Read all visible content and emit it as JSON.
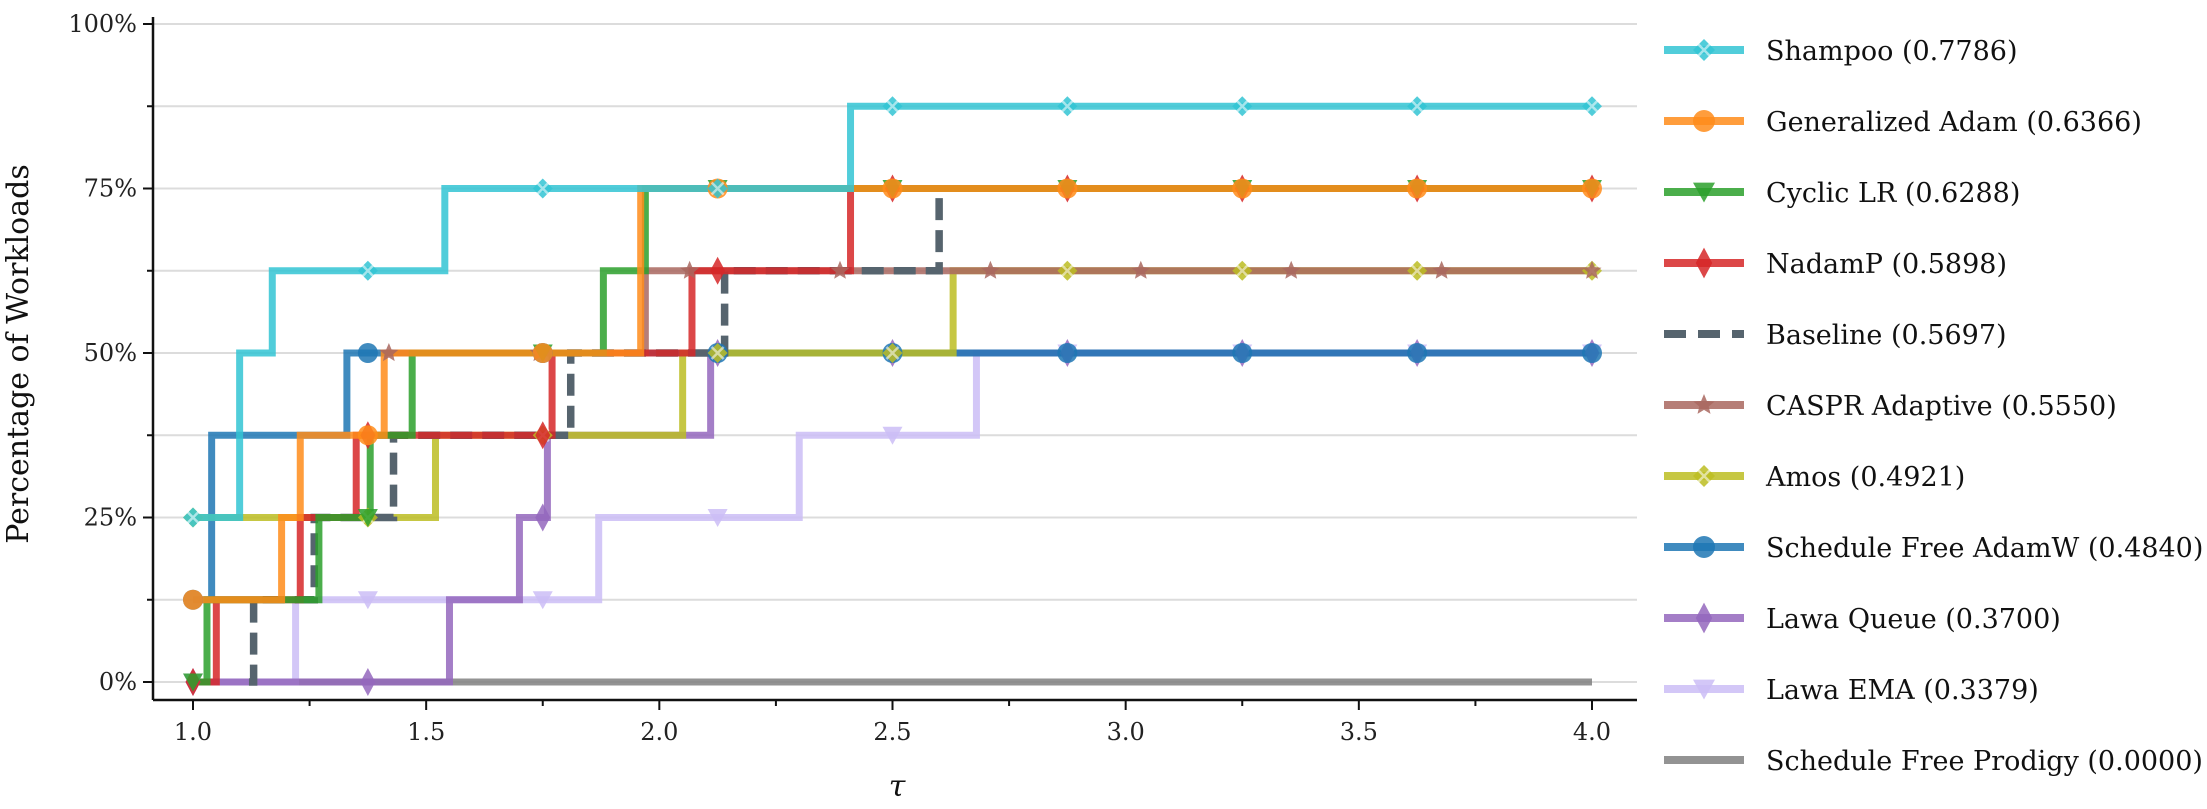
{
  "chart_data": {
    "type": "line",
    "subtype": "step",
    "xlabel": "τ",
    "ylabel": "Percentage of Workloads",
    "xlim": [
      0.9,
      4.08
    ],
    "ylim": [
      -3,
      100
    ],
    "xticks": [
      "1.0",
      "1.5",
      "2.0",
      "2.5",
      "3.0",
      "3.5",
      "4.0"
    ],
    "yticks": [
      "0%",
      "25%",
      "50%",
      "75%",
      "100%"
    ],
    "grid": "horizontal",
    "legend_position": "right",
    "series": [
      {
        "name": "Shampoo (0.7786)",
        "color": "#33c4d4",
        "marker": "x-diamond",
        "dash": "solid",
        "x": [
          1.0,
          1.1,
          1.17,
          1.54,
          2.41,
          4.0
        ],
        "y": [
          25,
          50,
          62.5,
          75,
          87.5,
          87.5
        ]
      },
      {
        "name": "Generalized Adam (0.6366)",
        "color": "#ff8c1a",
        "marker": "circle",
        "dash": "solid",
        "x": [
          1.0,
          1.19,
          1.23,
          1.41,
          1.96,
          4.0
        ],
        "y": [
          12.5,
          25,
          37.5,
          50,
          75,
          75
        ]
      },
      {
        "name": "Cyclic LR (0.6288)",
        "color": "#2ca02c",
        "marker": "triangle-down",
        "dash": "solid",
        "x": [
          1.0,
          1.03,
          1.27,
          1.38,
          1.47,
          1.88,
          1.97,
          4.0
        ],
        "y": [
          0,
          12.5,
          25,
          37.5,
          50,
          62.5,
          75,
          75
        ]
      },
      {
        "name": "NadamP (0.5898)",
        "color": "#d62728",
        "marker": "diamond",
        "dash": "solid",
        "x": [
          1.0,
          1.05,
          1.23,
          1.35,
          1.77,
          2.07,
          2.41,
          4.0
        ],
        "y": [
          0,
          12.5,
          25,
          37.5,
          50,
          62.5,
          75,
          75
        ]
      },
      {
        "name": "Baseline (0.5697)",
        "color": "#56646e",
        "marker": "none",
        "dash": "dashed",
        "x": [
          1.12,
          1.13,
          1.26,
          1.43,
          1.81,
          2.14,
          2.57,
          2.6
        ],
        "y": [
          0,
          12.5,
          25,
          37.5,
          50,
          62.5,
          62.5,
          75
        ]
      },
      {
        "name": "CASPR Adaptive (0.5550)",
        "color": "#a9675f",
        "marker": "star",
        "dash": "solid",
        "x": [
          1.42,
          1.97,
          4.0
        ],
        "y": [
          50,
          62.5,
          62.5
        ]
      },
      {
        "name": "Amos (0.4921)",
        "color": "#bcbd22",
        "marker": "x-diamond",
        "dash": "solid",
        "x": [
          1.0,
          1.52,
          2.05,
          2.63,
          4.0
        ],
        "y": [
          25,
          37.5,
          50,
          62.5,
          62.5
        ]
      },
      {
        "name": "Schedule Free AdamW (0.4840)",
        "color": "#1f77b4",
        "marker": "circle",
        "dash": "solid",
        "x": [
          1.0,
          1.04,
          1.33,
          4.0
        ],
        "y": [
          12.5,
          37.5,
          50,
          50
        ]
      },
      {
        "name": "Lawa Queue (0.3700)",
        "color": "#9467bd",
        "marker": "diamond",
        "dash": "solid",
        "x": [
          1.0,
          1.55,
          1.7,
          1.76,
          2.11,
          4.0
        ],
        "y": [
          0,
          12.5,
          25,
          37.5,
          50,
          50
        ]
      },
      {
        "name": "Lawa EMA (0.3379)",
        "color": "#cbbdf6",
        "marker": "triangle-down",
        "dash": "solid",
        "x": [
          1.0,
          1.22,
          1.87,
          2.3,
          2.68,
          4.0
        ],
        "y": [
          0,
          12.5,
          25,
          37.5,
          50,
          50
        ]
      },
      {
        "name": "Schedule Free Prodigy (0.0000)",
        "color": "#808080",
        "marker": "none",
        "dash": "solid",
        "x": [
          1.0,
          4.0
        ],
        "y": [
          0,
          0
        ]
      }
    ]
  }
}
